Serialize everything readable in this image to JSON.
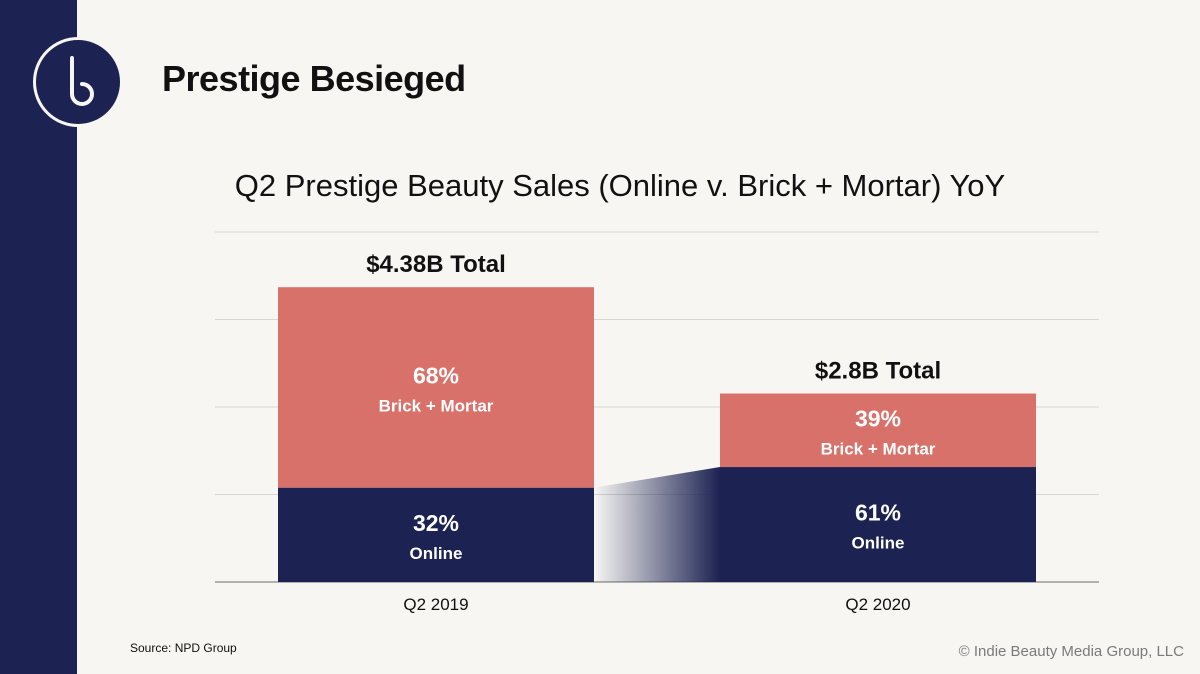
{
  "slide": {
    "title": "Prestige Besieged",
    "source": "Source: NPD Group",
    "copyright": "© Indie Beauty Media Group, LLC",
    "logo_letter": "b"
  },
  "colors": {
    "brand_navy": "#1c2252",
    "online": "#1c2252",
    "brick_mortar": "#d9716b",
    "gridline": "#d6d6d6",
    "background": "#f7f6f3"
  },
  "chart_data": {
    "type": "bar",
    "stacked": true,
    "title": "Q2 Prestige Beauty Sales (Online v. Brick + Mortar) YoY",
    "categories": [
      "Q2 2019",
      "Q2 2020"
    ],
    "totals": [
      4.38,
      2.8
    ],
    "total_labels": [
      "$4.38B Total",
      "$2.8B Total"
    ],
    "unit": "$B",
    "ylim": [
      0,
      5.2
    ],
    "grid": true,
    "series": [
      {
        "name": "Online",
        "percent_labels": [
          "32%",
          "61%"
        ],
        "shares": [
          0.32,
          0.61
        ],
        "color": "#1c2252"
      },
      {
        "name": "Brick + Mortar",
        "percent_labels": [
          "68%",
          "39%"
        ],
        "shares": [
          0.68,
          0.39
        ],
        "color": "#d9716b"
      }
    ]
  }
}
